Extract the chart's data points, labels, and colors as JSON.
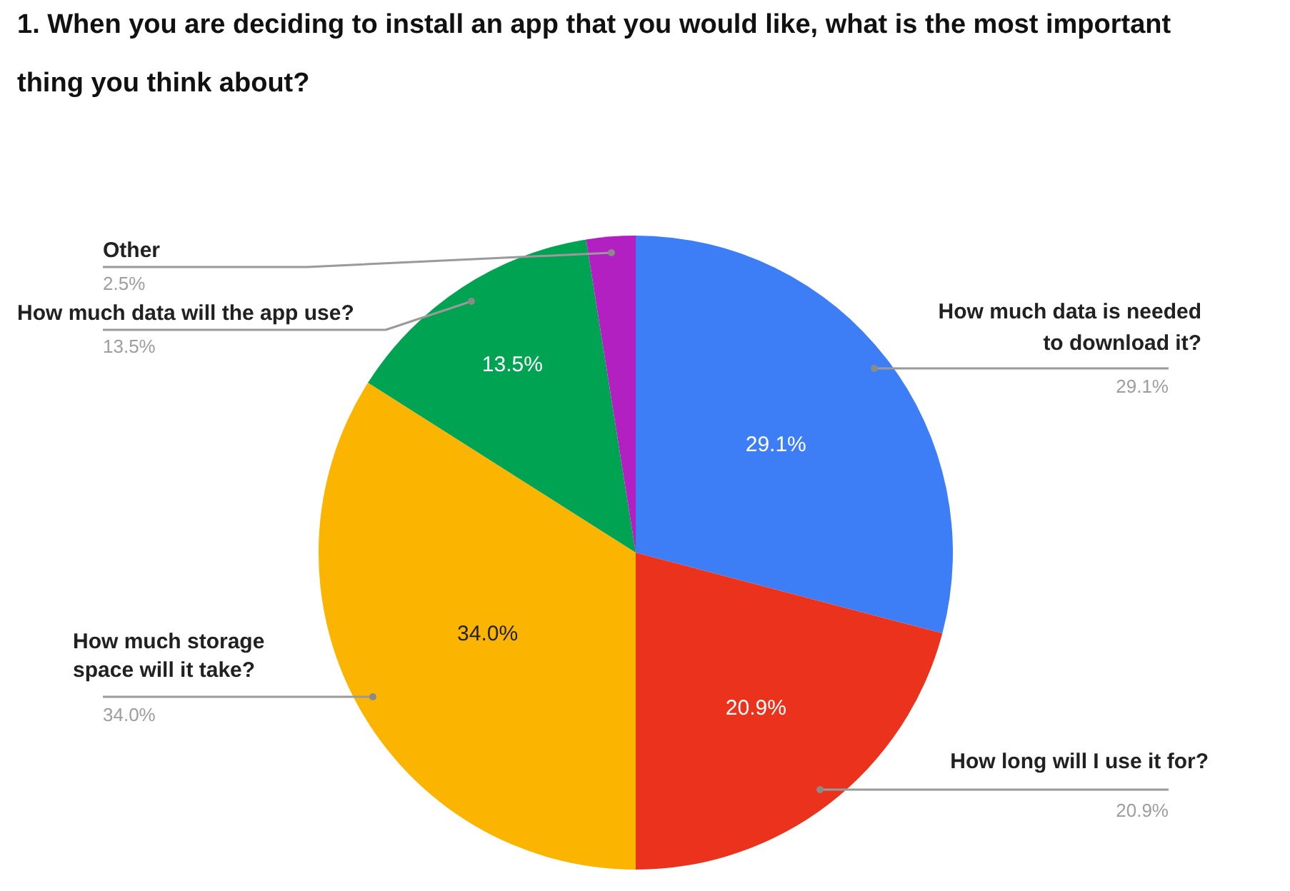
{
  "chart_data": {
    "type": "pie",
    "title": "1. When you are deciding to install an app that you would like, what is the most important thing you think about?",
    "categories": [
      "How much data is needed to download it?",
      "How long will I use it for?",
      "How much storage space will it take?",
      "How much data will the app use?",
      "Other"
    ],
    "values": [
      29.1,
      20.9,
      34.0,
      13.5,
      2.5
    ],
    "value_labels": [
      "29.1%",
      "20.9%",
      "34.0%",
      "13.5%",
      "2.5%"
    ],
    "colors": [
      "#3d7ef7",
      "#ea321c",
      "#fbb400",
      "#00a352",
      "#b320c1"
    ]
  }
}
